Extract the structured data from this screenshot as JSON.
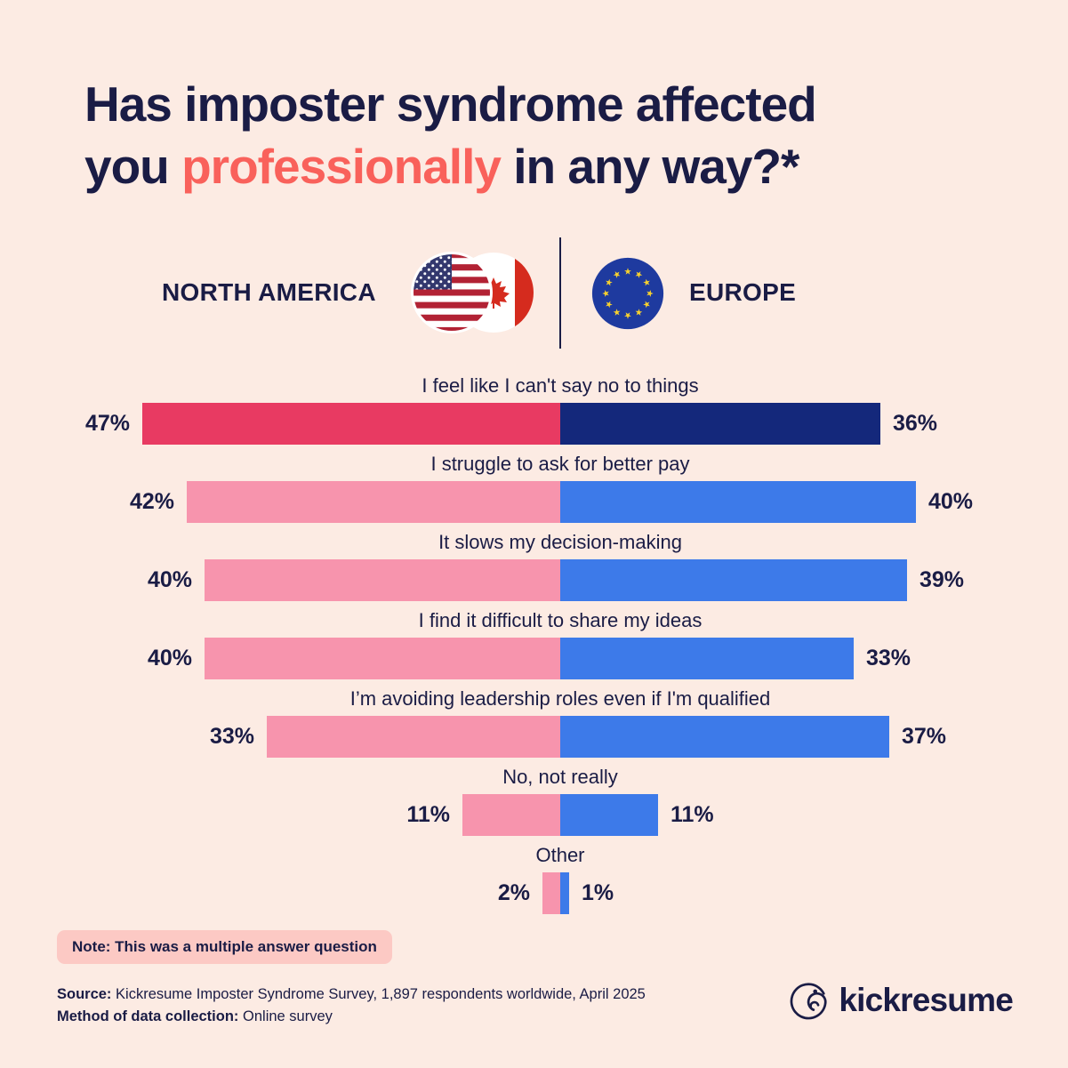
{
  "title": {
    "line1": "Has imposter syndrome affected",
    "line2_pre": "you ",
    "line2_highlight": "professionally",
    "line2_post": " in any way?*",
    "highlight_color": "#f9615b"
  },
  "legend": {
    "left_label": "NORTH AMERICA",
    "right_label": "EUROPE",
    "left_flags": [
      "usa-flag",
      "canada-flag"
    ],
    "right_flag": "eu-flag"
  },
  "chart_data": {
    "type": "bar",
    "orientation": "diverging-horizontal",
    "unit": "%",
    "categories": [
      "I feel like I can't say no to things",
      "I struggle to ask for better pay",
      "It slows my decision-making",
      "I find it difficult to share my ideas",
      "I’m avoiding leadership roles even if I'm qualified",
      "No, not really",
      "Other"
    ],
    "series": [
      {
        "name": "North America",
        "values": [
          47,
          42,
          40,
          40,
          33,
          11,
          2
        ]
      },
      {
        "name": "Europe",
        "values": [
          36,
          40,
          39,
          33,
          37,
          11,
          1
        ]
      }
    ],
    "highlight_row": 0,
    "colors": {
      "north_america_highlight": "#e83a62",
      "europe_highlight": "#14287b",
      "north_america": "#f794ad",
      "europe": "#3d7ae9"
    }
  },
  "note": {
    "text": "Note: This was a multiple answer question"
  },
  "footer": {
    "source_label": "Source:",
    "source_text": "Kickresume Imposter Syndrome Survey, 1,897 respondents worldwide, April 2025",
    "method_label": "Method of data collection:",
    "method_text": "Online survey"
  },
  "brand": {
    "name": "kickresume"
  }
}
